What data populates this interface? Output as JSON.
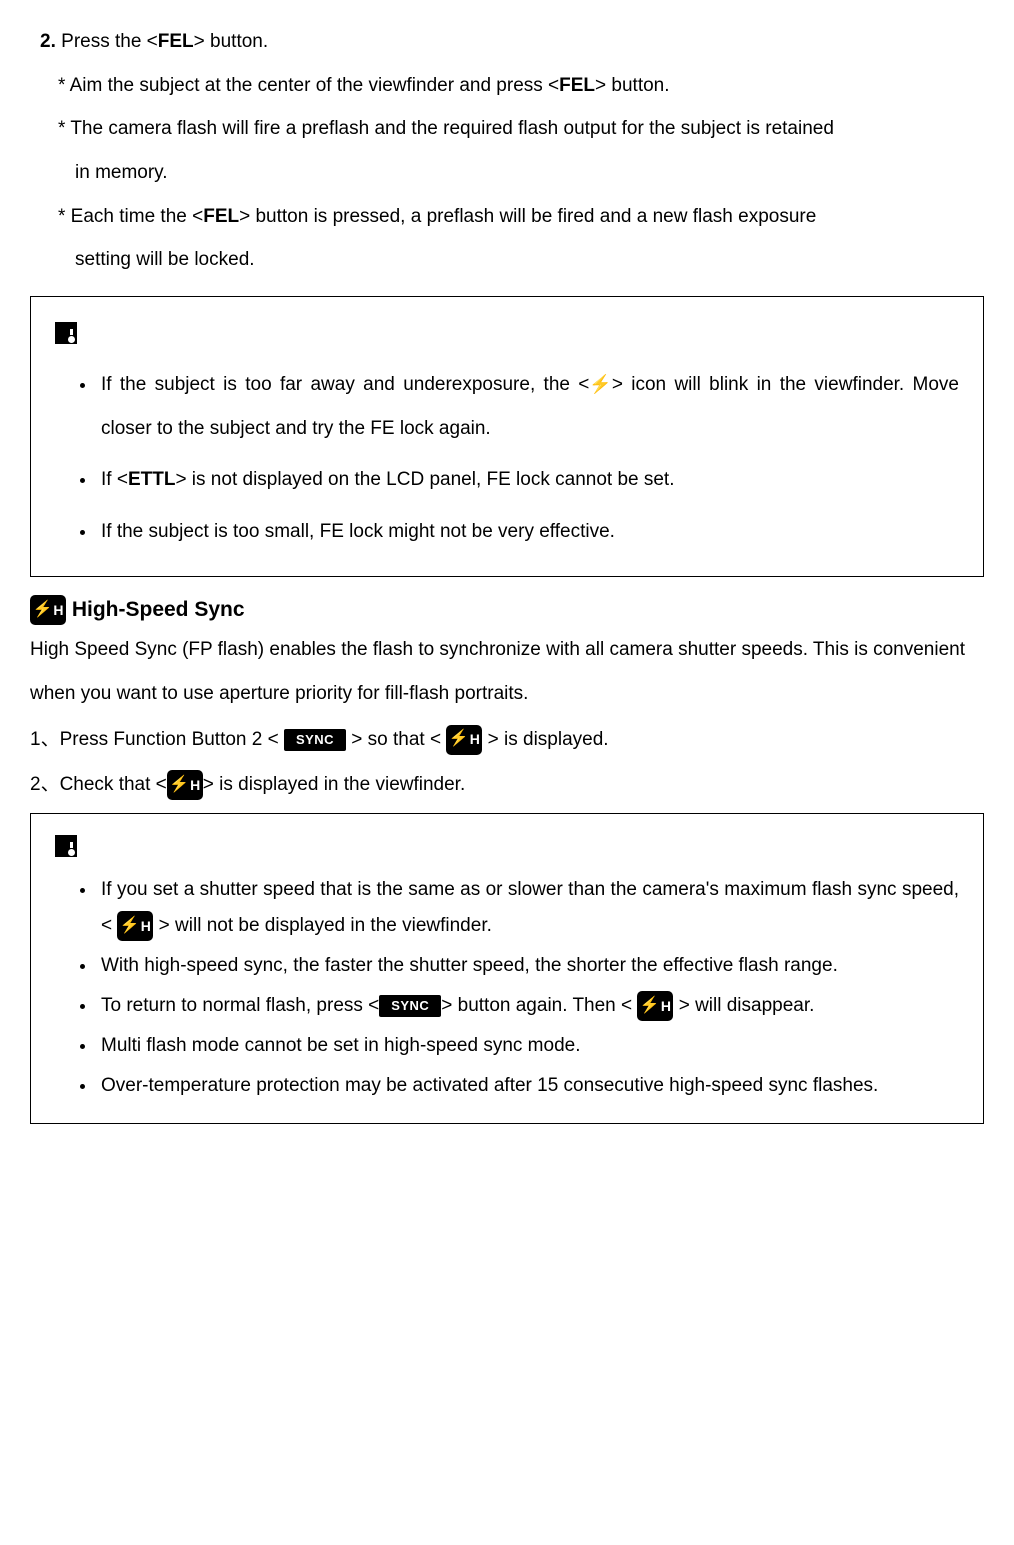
{
  "step": {
    "num": "2.",
    "text_pre": "Press the <",
    "fel": "FEL",
    "text_post": "> button."
  },
  "subs": {
    "s1_pre": "* Aim the subject at the center of the viewfinder and press <",
    "s1_b": "FEL",
    "s1_post": "> button.",
    "s2": "* The camera flash will fire a preflash and the required flash output for the subject is retained",
    "s2b": "in memory.",
    "s3_pre": "* Each time the <",
    "s3_b": "FEL",
    "s3_mid": "> button is pressed, a preflash will be fired and a new flash exposure",
    "s3b": "setting will be locked."
  },
  "box1": {
    "li1_pre": "If the subject is too far away and underexposure, the <",
    "li1_post": "> icon will blink in the viewfinder. Move closer to the subject and try the FE lock again.",
    "li2_pre": "If <",
    "li2_b": "ETTL",
    "li2_post": "> is not displayed on the LCD panel, FE lock cannot be set.",
    "li3": "If the subject is too small, FE lock might not be very effective."
  },
  "hs": {
    "title": "High-Speed Sync",
    "intro": "High Speed Sync (FP flash) enables the flash to synchronize with all camera shutter speeds. This is convenient when you want to use aperture priority for fill-flash portraits.",
    "n1_pre": "1、Press Function Button 2 < ",
    "n1_mid": " > so that < ",
    "n1_post": " > is displayed.",
    "n2_pre": "2、Check that <",
    "n2_post": "> is displayed in the viewfinder."
  },
  "box2": {
    "li1_pre": "If you set a shutter speed that is the same as or slower than the camera's maximum flash sync speed, < ",
    "li1_post": " > will not be displayed in the viewfinder.",
    "li2": "With high-speed sync, the faster the shutter speed, the shorter the effective flash range.",
    "li3_pre": "To return to normal flash, press <",
    "li3_mid": "> button again. Then < ",
    "li3_post": " > will disappear.",
    "li4": "Multi flash mode cannot be set in high-speed sync mode.",
    "li5": "Over-temperature protection may be activated after 15 consecutive high-speed sync flashes."
  },
  "icons": {
    "sync_label": "SYNC"
  }
}
